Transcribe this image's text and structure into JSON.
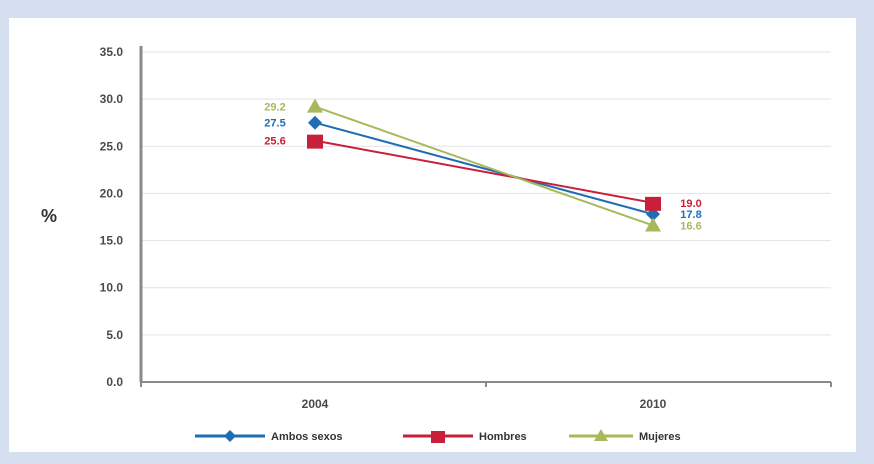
{
  "chart_data": {
    "type": "line",
    "categories": [
      "2004",
      "2010"
    ],
    "ylabel": "%",
    "ylim": [
      0,
      35
    ],
    "yticks": [
      "0.0",
      "5.0",
      "10.0",
      "15.0",
      "20.0",
      "25.0",
      "30.0",
      "35.0"
    ],
    "grid": true,
    "legend_position": "bottom",
    "series": [
      {
        "name": "Ambos sexos",
        "values": [
          27.5,
          17.8
        ],
        "labels": [
          "27.5",
          "17.8"
        ],
        "color": "#1f6db5",
        "marker": "diamond"
      },
      {
        "name": "Hombres",
        "values": [
          25.6,
          19.0
        ],
        "labels": [
          "25.6",
          "19.0"
        ],
        "color": "#c8203a",
        "marker": "square"
      },
      {
        "name": "Mujeres",
        "values": [
          29.2,
          16.6
        ],
        "labels": [
          "29.2",
          "16.6"
        ],
        "color": "#a9b85a",
        "marker": "triangle"
      }
    ]
  }
}
